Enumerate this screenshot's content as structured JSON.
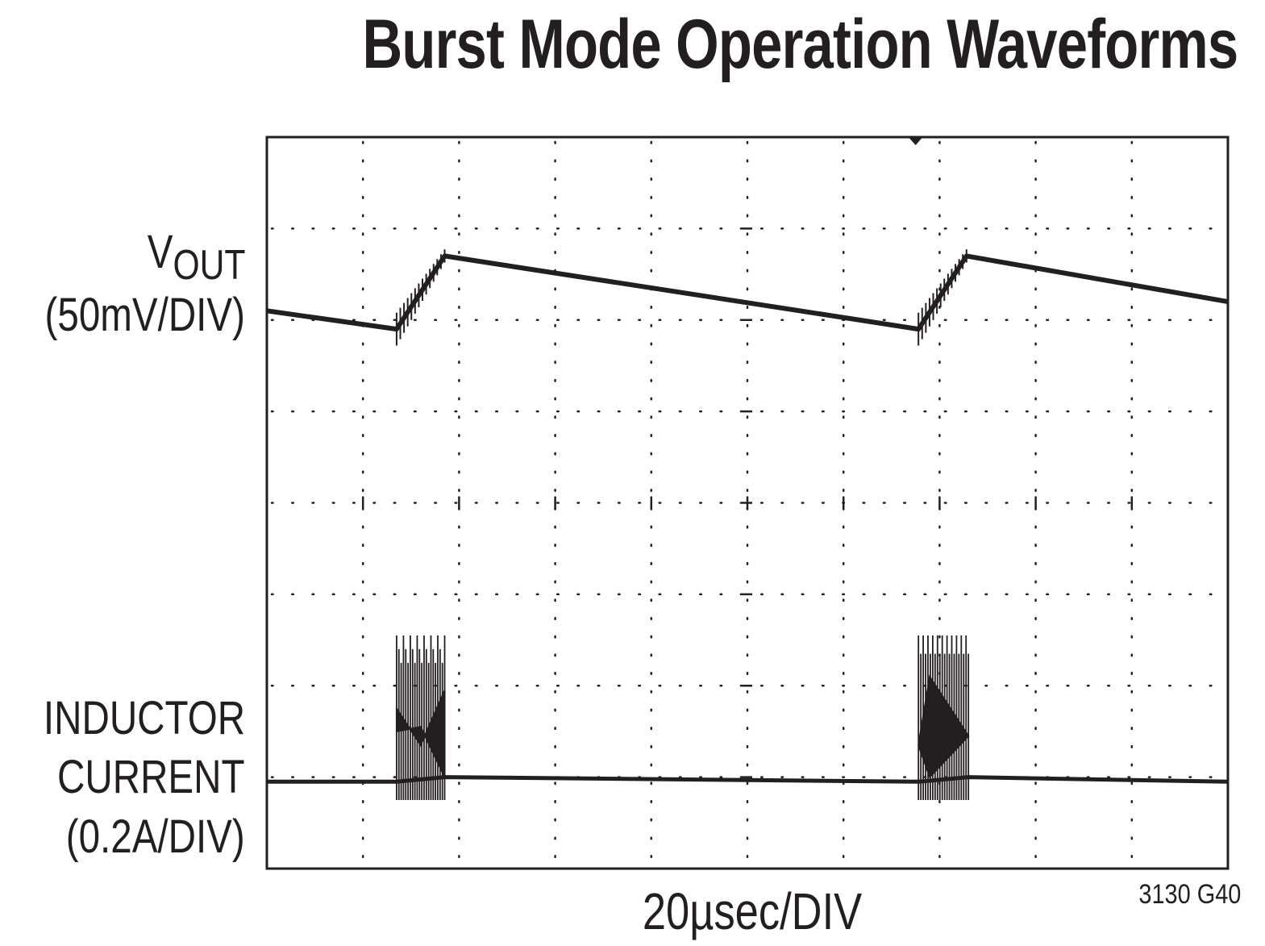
{
  "chart_data": {
    "type": "line",
    "title": "Burst Mode Operation Waveforms",
    "xlabel": "20µsec/DIV",
    "figure_id": "3130 G40",
    "grid": "dotted, 10 x 8 divisions",
    "x_divisions": 10,
    "y_divisions": 8,
    "xlim": [
      0,
      10
    ],
    "ylim": [
      0,
      8
    ],
    "series": [
      {
        "name": "VOUT",
        "label_main": "V",
        "label_sub": "OUT",
        "scale": "(50mV/DIV)",
        "x": [
          0,
          1.35,
          1.35,
          1.85,
          1.85,
          6.78,
          6.78,
          7.28,
          7.28,
          10
        ],
        "y": [
          6.1,
          5.9,
          5.9,
          6.7,
          6.7,
          5.9,
          5.9,
          6.7,
          6.7,
          6.2
        ],
        "bursts": [
          [
            1.35,
            1.85
          ],
          [
            6.78,
            7.28
          ]
        ]
      },
      {
        "name": "INDUCTOR CURRENT",
        "label_lines": [
          "INDUCTOR",
          "CURRENT"
        ],
        "scale": "(0.2A/DIV)",
        "x": [
          0,
          1.35,
          1.85,
          6.78,
          7.3,
          10
        ],
        "y": [
          0.95,
          0.95,
          1.0,
          0.95,
          1.0,
          0.95
        ],
        "bursts": [
          [
            1.35,
            1.85
          ],
          [
            6.78,
            7.3
          ]
        ],
        "burst_peak_y": 2.55
      }
    ]
  }
}
